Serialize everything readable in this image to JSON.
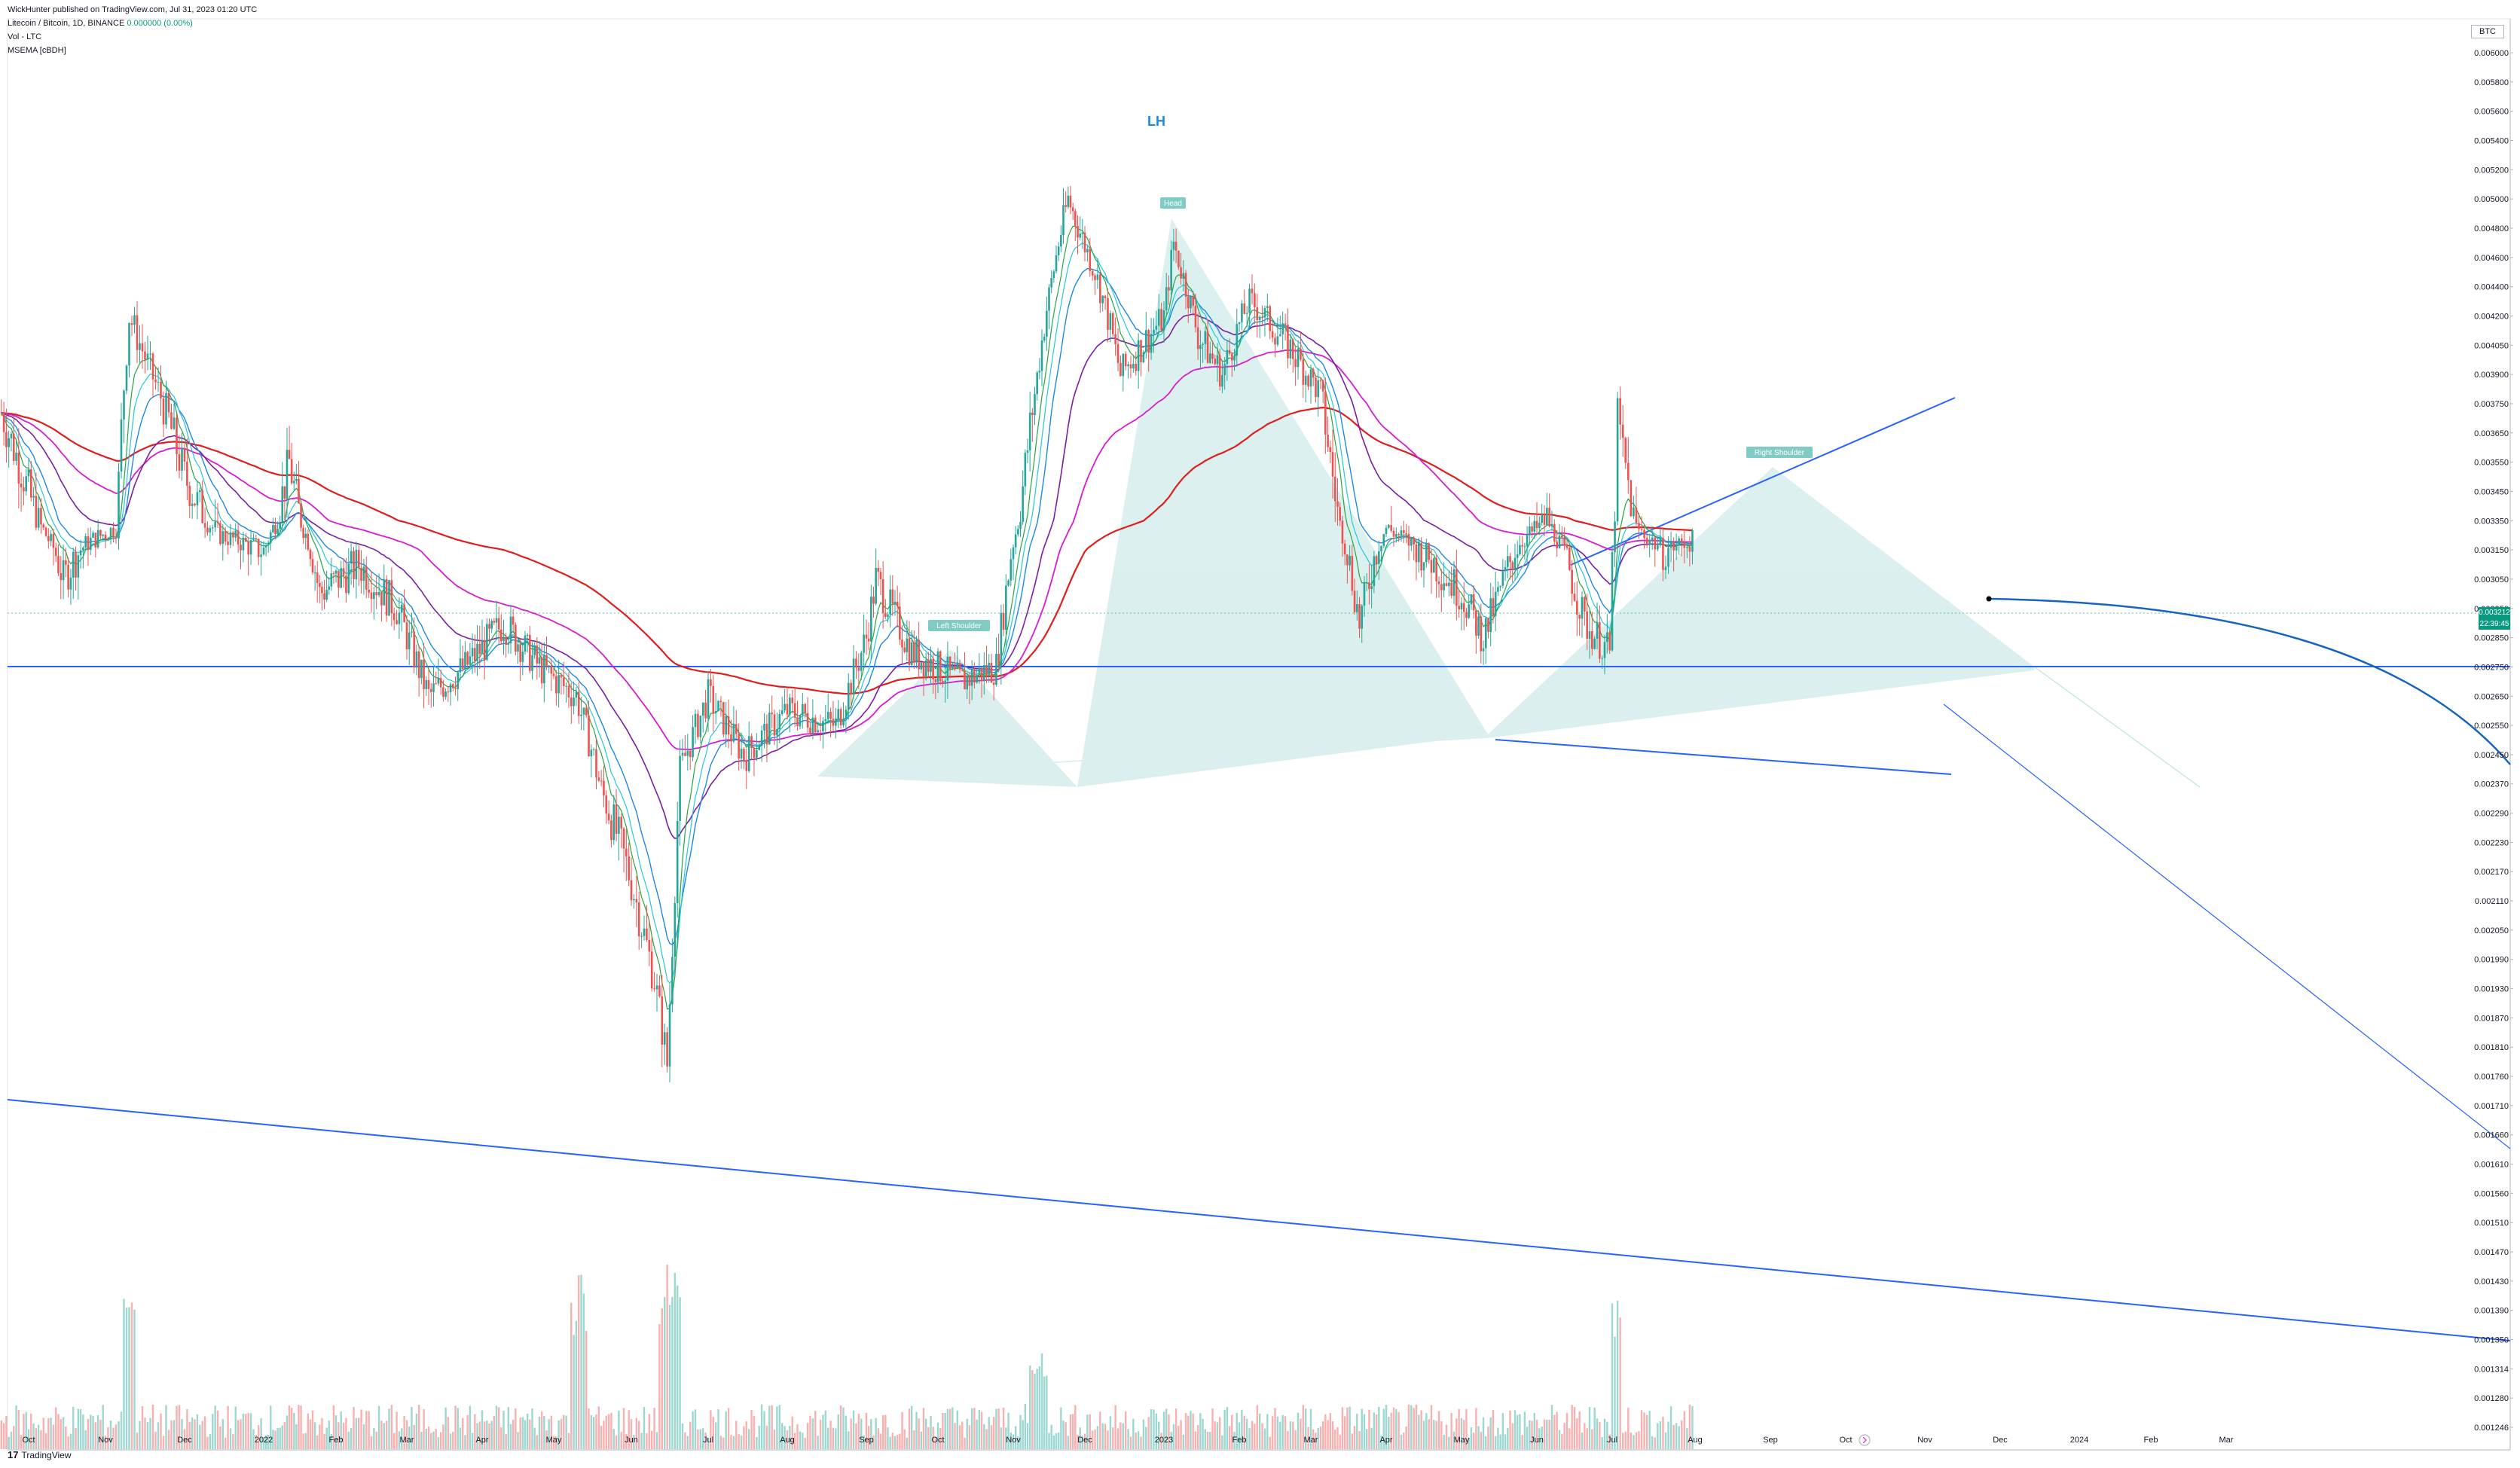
{
  "header": {
    "published": "WickHunter published on TradingView.com, Jul 31, 2023 01:20 UTC",
    "symbol": "Litecoin / Bitcoin, 1D, BINANCE",
    "change": "0.000000 (0.00%)",
    "volume_label": "Vol - LTC",
    "indicator_label": "MSEMA [cBDH]"
  },
  "currency_badge": "BTC",
  "last_price": {
    "value": "0.003212",
    "countdown": "22:39:45",
    "color": "#089981"
  },
  "footer": {
    "logo_glyph": "17",
    "brand": "TradingView"
  },
  "annotations": {
    "lh": "LH",
    "head": "Head",
    "left_shoulder": "Left Shoulder",
    "right_shoulder": "Right Shoulder"
  },
  "colors": {
    "pattern_fill": "#26a69a",
    "trendline": "#2962ff",
    "ema_red": "#e01e1e",
    "ema_magenta": "#d81bd0",
    "ema_purple": "#7b1fa2",
    "ema_blue": "#1e88e5",
    "ema_teal": "#26c6da",
    "ema_green": "#26a641",
    "candle_up": "#26a69a",
    "candle_down": "#ef5350"
  },
  "chart_data": {
    "type": "candlestick",
    "y_scale": "log",
    "ylim": [
      0.00124,
      0.0061
    ],
    "y_ticks": [
      "0.006000",
      "0.005800",
      "0.005600",
      "0.005400",
      "0.005200",
      "0.005000",
      "0.004800",
      "0.004600",
      "0.004400",
      "0.004200",
      "0.004050",
      "0.003900",
      "0.003750",
      "0.003650",
      "0.003550",
      "0.003450",
      "0.003350",
      "0.003150",
      "0.003050",
      "0.002950",
      "0.002850",
      "0.002750",
      "0.002650",
      "0.002550",
      "0.002450",
      "0.002370",
      "0.002290",
      "0.002230",
      "0.002170",
      "0.002110",
      "0.002050",
      "0.001990",
      "0.001930",
      "0.001870",
      "0.001810",
      "0.001760",
      "0.001710",
      "0.001660",
      "0.001610",
      "0.001560",
      "0.001510",
      "0.001470",
      "0.001430",
      "0.001390",
      "0.001350",
      "0.001314",
      "0.001280",
      "0.001246"
    ],
    "x_labels": [
      "Oct",
      "Nov",
      "Dec",
      "2022",
      "Feb",
      "Mar",
      "Apr",
      "May",
      "Jun",
      "Jul",
      "Aug",
      "Sep",
      "Oct",
      "Nov",
      "Dec",
      "2023",
      "Feb",
      "Mar",
      "Apr",
      "May",
      "Jun",
      "Jul",
      "Aug",
      "Sep",
      "Oct",
      "Nov",
      "Dec",
      "2024",
      "Feb",
      "Mar"
    ],
    "price_path": [
      [
        "2021-09-20",
        0.00372
      ],
      [
        "2021-10-01",
        0.00345
      ],
      [
        "2021-10-15",
        0.00305
      ],
      [
        "2021-10-25",
        0.0032
      ],
      [
        "2021-11-05",
        0.0033
      ],
      [
        "2021-11-10",
        0.0042
      ],
      [
        "2021-11-20",
        0.00385
      ],
      [
        "2021-12-01",
        0.0035
      ],
      [
        "2021-12-15",
        0.00325
      ],
      [
        "2022-01-01",
        0.00315
      ],
      [
        "2022-01-12",
        0.00355
      ],
      [
        "2022-01-25",
        0.003
      ],
      [
        "2022-02-10",
        0.0031
      ],
      [
        "2022-02-25",
        0.00295
      ],
      [
        "2022-03-10",
        0.00265
      ],
      [
        "2022-03-25",
        0.00275
      ],
      [
        "2022-04-10",
        0.0029
      ],
      [
        "2022-04-25",
        0.00275
      ],
      [
        "2022-05-10",
        0.00265
      ],
      [
        "2022-05-20",
        0.00235
      ],
      [
        "2022-06-01",
        0.00215
      ],
      [
        "2022-06-10",
        0.00195
      ],
      [
        "2022-06-15",
        0.00178
      ],
      [
        "2022-06-20",
        0.0024
      ],
      [
        "2022-07-01",
        0.00265
      ],
      [
        "2022-07-15",
        0.00245
      ],
      [
        "2022-08-01",
        0.0026
      ],
      [
        "2022-08-20",
        0.00255
      ],
      [
        "2022-09-01",
        0.00285
      ],
      [
        "2022-09-05",
        0.00305
      ],
      [
        "2022-09-20",
        0.0028
      ],
      [
        "2022-10-10",
        0.0027
      ],
      [
        "2022-10-25",
        0.00275
      ],
      [
        "2022-11-01",
        0.0032
      ],
      [
        "2022-11-10",
        0.0038
      ],
      [
        "2022-11-20",
        0.0047
      ],
      [
        "2022-11-24",
        0.005
      ],
      [
        "2022-12-05",
        0.0045
      ],
      [
        "2022-12-15",
        0.0039
      ],
      [
        "2023-01-01",
        0.0042
      ],
      [
        "2023-01-05",
        0.0047
      ],
      [
        "2023-01-15",
        0.0041
      ],
      [
        "2023-01-25",
        0.0039
      ],
      [
        "2023-02-05",
        0.0043
      ],
      [
        "2023-02-20",
        0.00405
      ],
      [
        "2023-03-05",
        0.0038
      ],
      [
        "2023-03-15",
        0.0032
      ],
      [
        "2023-03-21",
        0.0029
      ],
      [
        "2023-04-01",
        0.0033
      ],
      [
        "2023-04-15",
        0.00315
      ],
      [
        "2023-05-01",
        0.003
      ],
      [
        "2023-05-10",
        0.00285
      ],
      [
        "2023-05-25",
        0.0032
      ],
      [
        "2023-06-05",
        0.00335
      ],
      [
        "2023-06-20",
        0.0029
      ],
      [
        "2023-06-30",
        0.0028
      ],
      [
        "2023-07-03",
        0.0037
      ],
      [
        "2023-07-10",
        0.0033
      ],
      [
        "2023-07-20",
        0.00315
      ],
      [
        "2023-07-31",
        0.003212
      ]
    ],
    "series": [
      {
        "name": "MSEMA",
        "values": []
      }
    ],
    "horizontal_line": 0.00303,
    "grid": true,
    "legend": "top-left"
  }
}
